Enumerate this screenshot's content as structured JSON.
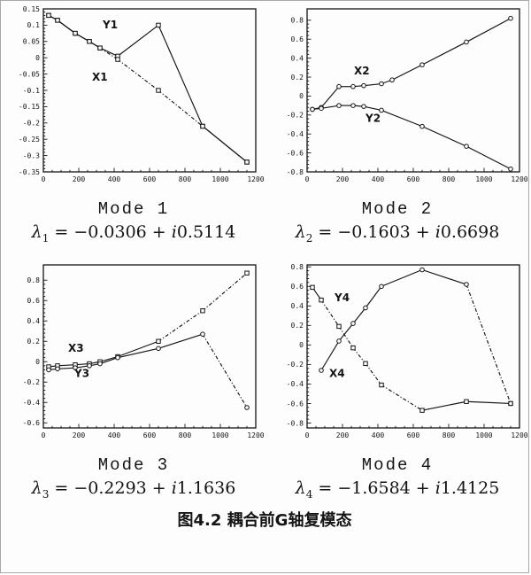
{
  "figure": {
    "caption": "图4.2 耦合前G轴复模态"
  },
  "panels": [
    {
      "mode_label": "Mode 1",
      "formula": {
        "lambda": "λ",
        "sub": "1",
        "real": " = −0.0306 + ",
        "i": "i",
        "imag": "0.5114"
      }
    },
    {
      "mode_label": "Mode 2",
      "formula": {
        "lambda": "λ",
        "sub": "2",
        "real": " = −0.1603 + ",
        "i": "i",
        "imag": "0.6698"
      }
    },
    {
      "mode_label": "Mode 3",
      "formula": {
        "lambda": "λ",
        "sub": "3",
        "real": " = −0.2293 + ",
        "i": "i",
        "imag": "1.1636"
      }
    },
    {
      "mode_label": "Mode 4",
      "formula": {
        "lambda": "λ",
        "sub": "4",
        "real": " = −1.6584 + ",
        "i": "i",
        "imag": "1.4125"
      }
    }
  ],
  "style": {
    "ink_color": "#141414",
    "background": "#fdfdfd",
    "marker_fill": "#ffffff"
  },
  "chart_data": [
    {
      "type": "line",
      "title": "Mode 1",
      "xlabel": "",
      "ylabel": "",
      "grid": false,
      "legend": "none",
      "xlim": [
        0,
        1200
      ],
      "xticks": [
        0,
        200,
        400,
        600,
        800,
        1000,
        1200
      ],
      "ylim": [
        -0.35,
        0.15
      ],
      "yticks": [
        0.15,
        0.1,
        0.05,
        0,
        -0.05,
        -0.1,
        -0.15,
        -0.2,
        -0.25,
        -0.3,
        -0.35
      ],
      "series": [
        {
          "name": "Y1",
          "marker": "square",
          "label_pos": [
            335,
            0.09
          ],
          "x": [
            30,
            80,
            180,
            260,
            320,
            420,
            650,
            900,
            1150
          ],
          "y": [
            0.13,
            0.115,
            0.075,
            0.05,
            0.03,
            0.005,
            0.1,
            -0.21,
            -0.32
          ],
          "dashed_segments": []
        },
        {
          "name": "X1",
          "marker": "square",
          "label_pos": [
            275,
            -0.07
          ],
          "x": [
            30,
            80,
            180,
            260,
            320,
            420,
            650,
            900,
            1150
          ],
          "y": [
            0.13,
            0.115,
            0.075,
            0.05,
            0.03,
            -0.005,
            -0.1,
            -0.21,
            -0.32
          ],
          "dashed_segments": [
            4,
            5,
            6
          ]
        }
      ]
    },
    {
      "type": "line",
      "title": "Mode 2",
      "xlabel": "",
      "ylabel": "",
      "grid": false,
      "legend": "none",
      "xlim": [
        0,
        1200
      ],
      "xticks": [
        0,
        200,
        400,
        600,
        800,
        1000,
        1200
      ],
      "ylim": [
        -0.8,
        0.92
      ],
      "yticks": [
        0.8,
        0.6,
        0.4,
        0.2,
        0,
        -0.2,
        -0.4,
        -0.6,
        -0.8
      ],
      "series": [
        {
          "name": "X2",
          "marker": "circle",
          "label_pos": [
            265,
            0.23
          ],
          "x": [
            30,
            80,
            180,
            260,
            320,
            420,
            480,
            650,
            900,
            1150
          ],
          "y": [
            -0.14,
            -0.12,
            0.1,
            0.1,
            0.11,
            0.13,
            0.17,
            0.33,
            0.57,
            0.82
          ],
          "dashed_segments": []
        },
        {
          "name": "Y2",
          "marker": "circle",
          "label_pos": [
            330,
            -0.27
          ],
          "x": [
            30,
            80,
            180,
            260,
            320,
            420,
            650,
            900,
            1150
          ],
          "y": [
            -0.14,
            -0.13,
            -0.1,
            -0.1,
            -0.11,
            -0.15,
            -0.32,
            -0.53,
            -0.77
          ],
          "dashed_segments": []
        }
      ]
    },
    {
      "type": "line",
      "title": "Mode 3",
      "xlabel": "",
      "ylabel": "",
      "grid": false,
      "legend": "none",
      "xlim": [
        0,
        1200
      ],
      "xticks": [
        0,
        200,
        400,
        600,
        800,
        1000,
        1200
      ],
      "ylim": [
        -0.65,
        0.95
      ],
      "yticks": [
        0.8,
        0.6,
        0.4,
        0.2,
        0,
        -0.2,
        -0.4,
        -0.6
      ],
      "series": [
        {
          "name": "X3",
          "marker": "square",
          "label_pos": [
            140,
            0.1
          ],
          "x": [
            30,
            80,
            180,
            260,
            320,
            420,
            650,
            900,
            1150
          ],
          "y": [
            -0.05,
            -0.04,
            -0.03,
            -0.02,
            0.0,
            0.05,
            0.2,
            0.5,
            0.87
          ],
          "dashed_segments": [
            6,
            7
          ]
        },
        {
          "name": "Y3",
          "marker": "circle",
          "label_pos": [
            175,
            -0.15
          ],
          "x": [
            30,
            80,
            180,
            260,
            320,
            420,
            650,
            900,
            1150
          ],
          "y": [
            -0.08,
            -0.07,
            -0.06,
            -0.04,
            -0.02,
            0.04,
            0.13,
            0.27,
            -0.45
          ],
          "dashed_segments": [
            7
          ]
        }
      ]
    },
    {
      "type": "line",
      "title": "Mode 4",
      "xlabel": "",
      "ylabel": "",
      "grid": false,
      "legend": "none",
      "xlim": [
        0,
        1200
      ],
      "xticks": [
        0,
        200,
        400,
        600,
        800,
        1000,
        1200
      ],
      "ylim": [
        -0.85,
        0.82
      ],
      "yticks": [
        0.8,
        0.6,
        0.4,
        0.2,
        0,
        -0.2,
        -0.4,
        -0.6,
        -0.8
      ],
      "series": [
        {
          "name": "Y4",
          "marker": "square",
          "label_pos": [
            155,
            0.45
          ],
          "x": [
            30,
            80,
            180,
            260,
            330,
            420,
            650,
            900,
            1150
          ],
          "y": [
            0.59,
            0.46,
            0.19,
            -0.03,
            -0.19,
            -0.41,
            -0.67,
            -0.58,
            -0.6
          ],
          "dashed_segments": [
            1,
            2,
            3,
            4,
            5
          ]
        },
        {
          "name": "X4",
          "marker": "circle",
          "label_pos": [
            125,
            -0.33
          ],
          "x": [
            80,
            180,
            260,
            330,
            420,
            650,
            900,
            1150
          ],
          "y": [
            -0.26,
            0.04,
            0.22,
            0.38,
            0.6,
            0.77,
            0.62,
            -0.6
          ],
          "dashed_segments": [
            6
          ]
        }
      ]
    }
  ]
}
